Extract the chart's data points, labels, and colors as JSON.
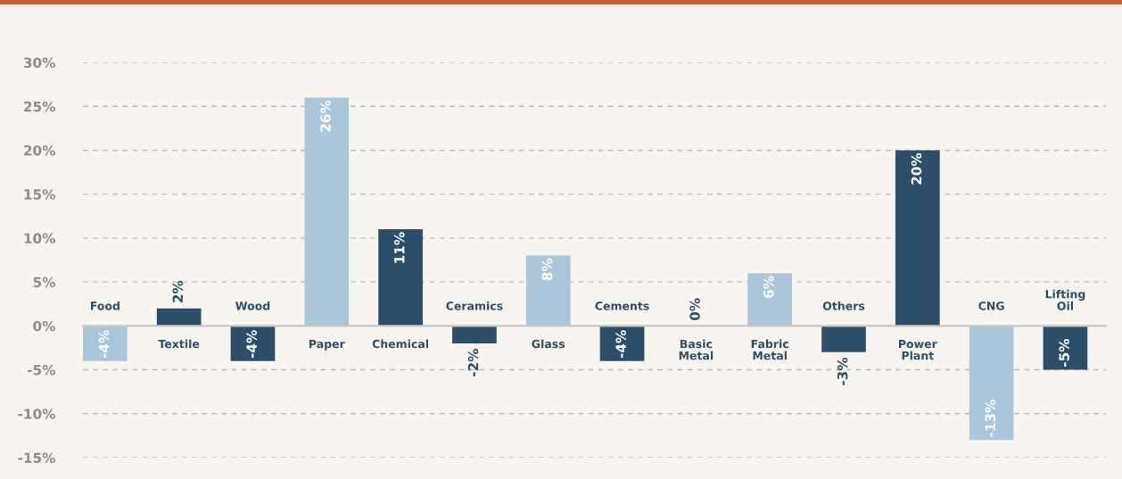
{
  "chart_data": {
    "type": "bar",
    "categories": [
      "Food",
      "Textile",
      "Wood",
      "Paper",
      "Chemical",
      "Ceramics",
      "Glass",
      "Cements",
      "Basic\nMetal",
      "Fabric\nMetal",
      "Others",
      "Power\nPlant",
      "CNG",
      "Lifting\nOil"
    ],
    "values": [
      -4,
      2,
      -4,
      26,
      11,
      -2,
      8,
      -4,
      0,
      6,
      -3,
      20,
      -13,
      -5
    ],
    "colors": [
      "#abc6da",
      "#2c4e68",
      "#2c4e68",
      "#abc6da",
      "#2c4e68",
      "#2c4e68",
      "#abc6da",
      "#2c4e68",
      "#abc6da",
      "#abc6da",
      "#2c4e68",
      "#2c4e68",
      "#abc6da",
      "#2c4e68"
    ],
    "value_labels": [
      "-4%",
      "2%",
      "-4%",
      "26%",
      "11%",
      "-2%",
      "8%",
      "-4%",
      "0%",
      "6%",
      "-3%",
      "20%",
      "-13%",
      "-5%"
    ],
    "ylim": [
      -15,
      30
    ],
    "yticks": [
      {
        "value": -15,
        "label": "-15%"
      },
      {
        "value": -10,
        "label": "-10%"
      },
      {
        "value": -5,
        "label": "-5%"
      },
      {
        "value": 0,
        "label": "0%"
      },
      {
        "value": 5,
        "label": "5%"
      },
      {
        "value": 10,
        "label": "10%"
      },
      {
        "value": 15,
        "label": "15%"
      },
      {
        "value": 20,
        "label": "20%"
      },
      {
        "value": 25,
        "label": "25%"
      },
      {
        "value": 30,
        "label": "30%"
      }
    ],
    "grid": "y"
  }
}
